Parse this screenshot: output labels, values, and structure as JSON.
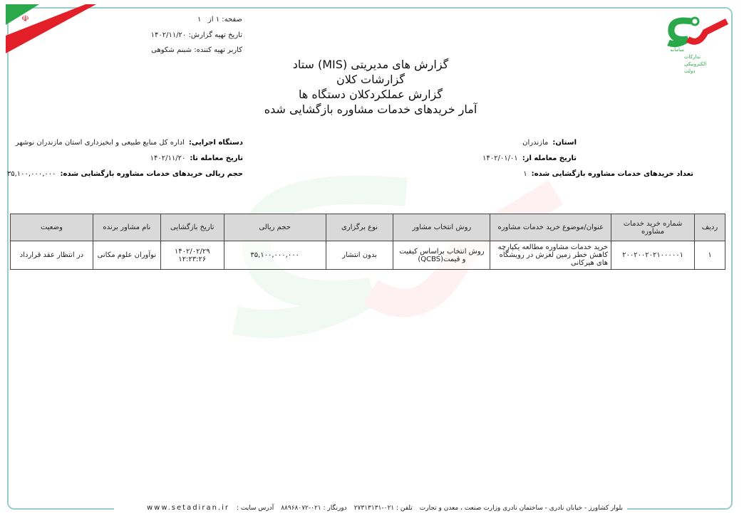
{
  "header": {
    "page_label": "صفحه:",
    "page_current": "۱",
    "page_of": "از",
    "page_total": "۱",
    "report_date_label": "تاریخ تهیه گزارش:",
    "report_date": "۱۴۰۲/۱۱/۲۰",
    "preparer_label": "کاربر تهیه کننده:",
    "preparer": "شبنم شکوهی",
    "titles": [
      "گزارش های مدیریتی (MIS) ستاد",
      "گزارشات کلان",
      "گزارش عملکردکلان دستگاه ها",
      "آمار خریدهای خدمات مشاوره بازگشایی شده"
    ],
    "logo_text": "سامانه تدارکات الکترونیکی دولت"
  },
  "info": {
    "province_label": "استان:",
    "province": "مازندران",
    "from_label": "تاریخ معامله از:",
    "from": "۱۴۰۲/۰۱/۰۱",
    "count_label": "تعداد خریدهای خدمات مشاوره بازگشایی شده:",
    "count": "۱",
    "agency_label": "دستگاه اجرایی:",
    "agency": "اداره کل منابع طبیعی و ابخیزداری استان مازندران  نوشهر",
    "to_label": "تاریخ معامله تا:",
    "to": "۱۴۰۲/۱۱/۲۰",
    "volume_label": "حجم ریالی خریدهای خدمات مشاوره بازگشایی شده:",
    "volume": "۳۵,۱۰۰,۰۰۰,۰۰۰"
  },
  "table": {
    "columns": [
      "ردیف",
      "شماره خرید خدمات مشاوره",
      "عنوان/موضوع خرید خدمات مشاوره",
      "روش انتخاب مشاور",
      "نوع برگزاری",
      "حجم ریالی",
      "تاریخ بازگشایی",
      "نام مشاور برنده",
      "وضعیت"
    ],
    "rows": [
      [
        "۱",
        "۲۰۰۲۰۰۲۰۲۱۰۰۰۰۰۱",
        "خرید خدمات مشاوره مطالعه یکپارچه کاهش خطر زمین لغزش در رویشگاه های هیرکانی",
        "روش انتخاب براساس کیفیت و قیمت(QCBS)",
        "بدون انتشار",
        "۳۵,۱۰۰,۰۰۰,۰۰۰",
        "۱۴۰۲/۰۲/۲۹ ۱۲:۲۳:۲۶",
        "نوآوران علوم مکانی",
        "در انتظار عقد قرارداد"
      ]
    ]
  },
  "footer": {
    "address": "بلوار کشاورز - خیابان نادری - ساختمان نادری  وزارت صنعت ، معدن و تجارت",
    "phone": "تلفن : ۰۲۱-۲۷۳۱۳۱۳۱",
    "fax": "دورنگار : ۰۲۱-۸۸۹۶۸۰۷۲",
    "site_label": "آدرس سایت :",
    "site": "www.setadiran.ir"
  },
  "colors": {
    "frame": "#9ccbcb",
    "header_bg": "#d9d9d9",
    "logo_red": "#e3202a",
    "logo_green": "#2aa84a"
  }
}
